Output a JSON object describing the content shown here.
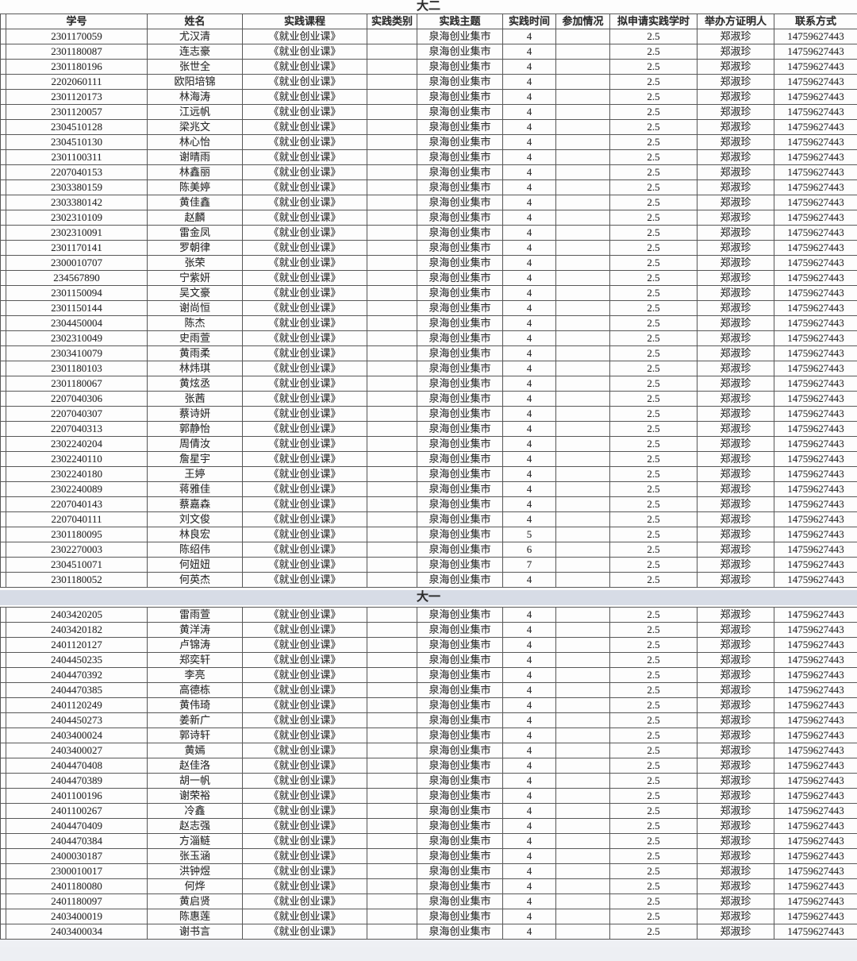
{
  "colors": {
    "band_bg": "#d7dce6",
    "grid_border": "#585858",
    "sheet_bg": "#fdfdfd"
  },
  "table": {
    "columns": [
      "学号",
      "姓名",
      "实践课程",
      "实践类别",
      "实践主题",
      "实践时间",
      "参加情况",
      "拟申请实践学时",
      "举办方证明人",
      "联系方式"
    ],
    "defaults": {
      "course": "《就业创业课》",
      "category": "",
      "theme": "泉海创业集市",
      "participation": "",
      "hours": "2.5",
      "witness": "郑淑珍",
      "contact": "14759627443"
    },
    "sections": [
      {
        "title": "大二",
        "rows": [
          {
            "id": "2301170059",
            "name": "尤汉清",
            "time": "4"
          },
          {
            "id": "2301180087",
            "name": "连志豪",
            "time": "4"
          },
          {
            "id": "2301180196",
            "name": "张世全",
            "time": "4"
          },
          {
            "id": "2202060111",
            "name": "欧阳培锦",
            "time": "4"
          },
          {
            "id": "2301120173",
            "name": "林海涛",
            "time": "4"
          },
          {
            "id": "2301120057",
            "name": "江远帆",
            "time": "4"
          },
          {
            "id": "2304510128",
            "name": "梁兆文",
            "time": "4"
          },
          {
            "id": "2304510130",
            "name": "林心怡",
            "time": "4"
          },
          {
            "id": "2301100311",
            "name": "谢晴雨",
            "time": "4"
          },
          {
            "id": "2207040153",
            "name": "林鑫丽",
            "time": "4"
          },
          {
            "id": "2303380159",
            "name": "陈美婷",
            "time": "4"
          },
          {
            "id": "2303380142",
            "name": "黄佳鑫",
            "time": "4"
          },
          {
            "id": "2302310109",
            "name": "赵麟",
            "time": "4"
          },
          {
            "id": "2302310091",
            "name": "雷金凤",
            "time": "4"
          },
          {
            "id": "2301170141",
            "name": "罗朝律",
            "time": "4"
          },
          {
            "id": "2300010707",
            "name": "张荣",
            "time": "4"
          },
          {
            "id": "234567890",
            "name": "宁紫妍",
            "time": "4"
          },
          {
            "id": "2301150094",
            "name": "吴文豪",
            "time": "4"
          },
          {
            "id": "2301150144",
            "name": "谢尚恒",
            "time": "4"
          },
          {
            "id": "2304450004",
            "name": "陈杰",
            "time": "4"
          },
          {
            "id": "2302310049",
            "name": "史雨萱",
            "time": "4"
          },
          {
            "id": "2303410079",
            "name": "黄雨柔",
            "time": "4"
          },
          {
            "id": "2301180103",
            "name": "林炜琪",
            "time": "4"
          },
          {
            "id": "2301180067",
            "name": "黄炫丞",
            "time": "4"
          },
          {
            "id": "2207040306",
            "name": "张茜",
            "time": "4"
          },
          {
            "id": "2207040307",
            "name": "蔡诗妍",
            "time": "4"
          },
          {
            "id": "2207040313",
            "name": "郭静怡",
            "time": "4"
          },
          {
            "id": "2302240204",
            "name": "周倩汝",
            "time": "4"
          },
          {
            "id": "2302240110",
            "name": "詹星宇",
            "time": "4"
          },
          {
            "id": "2302240180",
            "name": "王婷",
            "time": "4"
          },
          {
            "id": "2302240089",
            "name": "蒋雅佳",
            "time": "4"
          },
          {
            "id": "2207040143",
            "name": "蔡嘉森",
            "time": "4"
          },
          {
            "id": "2207040111",
            "name": "刘文俊",
            "time": "4"
          },
          {
            "id": "2301180095",
            "name": "林良宏",
            "time": "5"
          },
          {
            "id": "2302270003",
            "name": "陈绍伟",
            "time": "6"
          },
          {
            "id": "2304510071",
            "name": "何妞妞",
            "time": "7"
          },
          {
            "id": "2301180052",
            "name": "何英杰",
            "time": "4"
          }
        ]
      },
      {
        "title": "大一",
        "rows": [
          {
            "id": "2403420205",
            "name": "雷雨萱",
            "time": "4"
          },
          {
            "id": "2403420182",
            "name": "黄洋涛",
            "time": "4"
          },
          {
            "id": "2401120127",
            "name": "卢锦涛",
            "time": "4"
          },
          {
            "id": "2404450235",
            "name": "郑奕轩",
            "time": "4"
          },
          {
            "id": "2404470392",
            "name": "李亮",
            "time": "4"
          },
          {
            "id": "2404470385",
            "name": "高德栋",
            "time": "4"
          },
          {
            "id": "2401120249",
            "name": "黄伟琦",
            "time": "4"
          },
          {
            "id": "2404450273",
            "name": "姜新广",
            "time": "4"
          },
          {
            "id": "2403400024",
            "name": "郭诗轩",
            "time": "4"
          },
          {
            "id": "2403400027",
            "name": "黄嫣",
            "time": "4"
          },
          {
            "id": "2404470408",
            "name": "赵佳洛",
            "time": "4"
          },
          {
            "id": "2404470389",
            "name": "胡一帆",
            "time": "4"
          },
          {
            "id": "2401100196",
            "name": "谢荣裕",
            "time": "4"
          },
          {
            "id": "2401100267",
            "name": "冷鑫",
            "time": "4"
          },
          {
            "id": "2404470409",
            "name": "赵志强",
            "time": "4"
          },
          {
            "id": "2404470384",
            "name": "方淄鲢",
            "time": "4"
          },
          {
            "id": "2400030187",
            "name": "张玉涵",
            "time": "4"
          },
          {
            "id": "2300010017",
            "name": "洪钟煜",
            "time": "4"
          },
          {
            "id": "2401180080",
            "name": "何烨",
            "time": "4"
          },
          {
            "id": "2401180097",
            "name": "黄启贤",
            "time": "4"
          },
          {
            "id": "2403400019",
            "name": "陈惠莲",
            "time": "4"
          },
          {
            "id": "2403400034",
            "name": "谢书言",
            "time": "4"
          }
        ]
      }
    ]
  }
}
